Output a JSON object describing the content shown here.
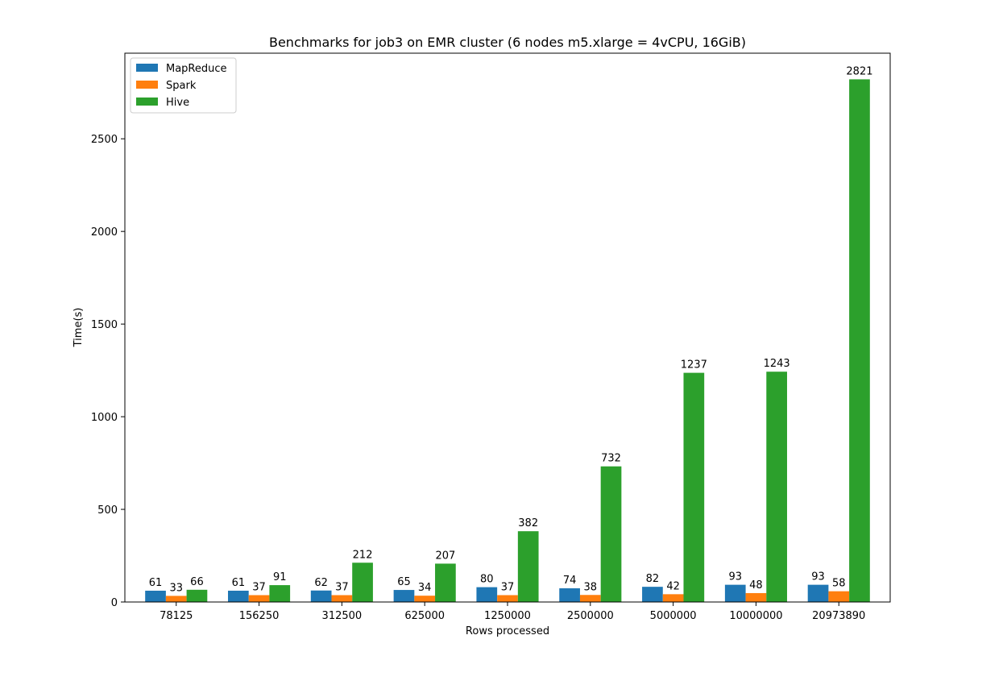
{
  "chart_data": {
    "type": "bar",
    "title": "Benchmarks for job3 on EMR cluster (6 nodes m5.xlarge = 4vCPU, 16GiB)",
    "xlabel": "Rows processed",
    "ylabel": "Time(s)",
    "categories": [
      "78125",
      "156250",
      "312500",
      "625000",
      "1250000",
      "2500000",
      "5000000",
      "10000000",
      "20973890"
    ],
    "series": [
      {
        "name": "MapReduce",
        "color": "#1f77b4",
        "values": [
          61,
          61,
          62,
          65,
          80,
          74,
          82,
          93,
          93
        ]
      },
      {
        "name": "Spark",
        "color": "#ff7f0e",
        "values": [
          33,
          37,
          37,
          34,
          37,
          38,
          42,
          48,
          58
        ]
      },
      {
        "name": "Hive",
        "color": "#2ca02c",
        "values": [
          66,
          91,
          212,
          207,
          382,
          732,
          1237,
          1243,
          2821
        ]
      }
    ],
    "yticks": [
      0,
      500,
      1000,
      1500,
      2000,
      2500
    ],
    "ylim": [
      0,
      2962
    ],
    "grid": false,
    "legend_position": "upper-left",
    "data_labels": true
  }
}
